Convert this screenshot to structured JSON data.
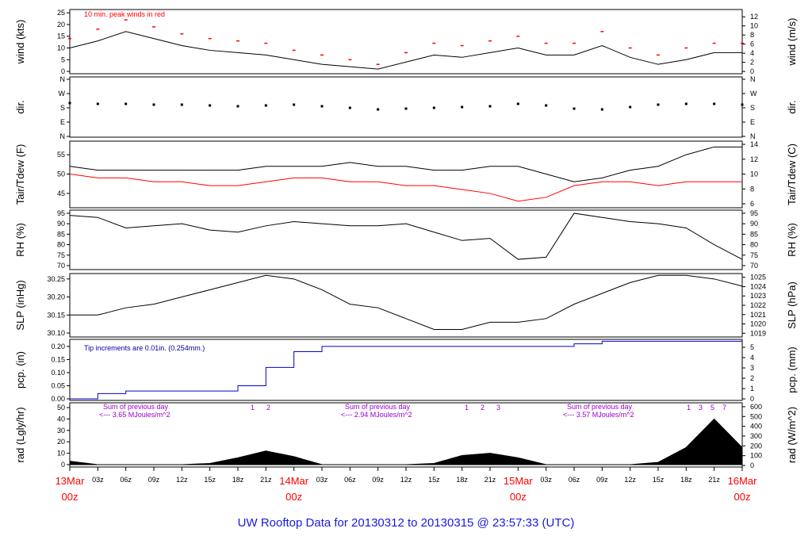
{
  "x_axis": {
    "x": [
      0,
      3,
      6,
      9,
      12,
      15,
      18,
      21,
      24,
      27,
      30,
      33,
      36,
      39,
      42,
      45,
      48,
      51,
      54,
      57,
      60,
      63,
      66,
      69,
      72
    ],
    "xlim": [
      0,
      72
    ],
    "xticks": [
      {
        "value": 0,
        "label": "13Mar",
        "sublabel": "00z"
      },
      {
        "value": 3,
        "label": "03z"
      },
      {
        "value": 6,
        "label": "06z"
      },
      {
        "value": 9,
        "label": "09z"
      },
      {
        "value": 12,
        "label": "12z"
      },
      {
        "value": 15,
        "label": "15z"
      },
      {
        "value": 18,
        "label": "18z"
      },
      {
        "value": 21,
        "label": "21z"
      },
      {
        "value": 24,
        "label": "14Mar",
        "sublabel": "00z"
      },
      {
        "value": 27,
        "label": "03z"
      },
      {
        "value": 30,
        "label": "06z"
      },
      {
        "value": 33,
        "label": "09z"
      },
      {
        "value": 36,
        "label": "12z"
      },
      {
        "value": 39,
        "label": "15z"
      },
      {
        "value": 42,
        "label": "18z"
      },
      {
        "value": 45,
        "label": "21z"
      },
      {
        "value": 48,
        "label": "15Mar",
        "sublabel": "00z"
      },
      {
        "value": 51,
        "label": "03z"
      },
      {
        "value": 54,
        "label": "06z"
      },
      {
        "value": 57,
        "label": "09z"
      },
      {
        "value": 60,
        "label": "12z"
      },
      {
        "value": 63,
        "label": "15z"
      },
      {
        "value": 66,
        "label": "18z"
      },
      {
        "value": 69,
        "label": "21z"
      },
      {
        "value": 72,
        "label": "16Mar",
        "sublabel": "00z"
      }
    ]
  },
  "title": "UW Rooftop Data for 20130312  to  20130315 @ 23:57:33  (UTC)",
  "chart_data": [
    {
      "type": "line",
      "ylabel": "wind (kts)",
      "y2label": "wind (m/s)",
      "ylim": [
        -1,
        26.4
      ],
      "yticks": [
        0,
        5,
        10,
        15,
        20,
        25
      ],
      "y2lim": [
        -0.51,
        13.6
      ],
      "y2ticks": [
        0,
        2,
        4,
        6,
        8,
        10,
        12
      ],
      "annotations": [
        "10 min. peak winds in red"
      ],
      "series": [
        {
          "name": "wind",
          "style": "line",
          "color": "#000000",
          "values": [
            10,
            13,
            17,
            14,
            11,
            9,
            8,
            7,
            5,
            3,
            2,
            1,
            4,
            7,
            6,
            8,
            10,
            7,
            7,
            11,
            6,
            3,
            5,
            8,
            8
          ]
        },
        {
          "name": "peak",
          "style": "dash",
          "color": "#ff0000",
          "values": [
            14,
            18,
            22,
            19,
            16,
            14,
            13,
            12,
            9,
            7,
            5,
            3,
            8,
            12,
            11,
            13,
            15,
            12,
            12,
            17,
            10,
            7,
            10,
            12,
            12
          ]
        }
      ]
    },
    {
      "type": "scatter",
      "ylabel": "dir.",
      "y2label": "dir.",
      "ylim": [
        -5,
        375
      ],
      "yticks": [
        {
          "value": 0,
          "label": "N"
        },
        {
          "value": 90,
          "label": "E"
        },
        {
          "value": 180,
          "label": "S"
        },
        {
          "value": 270,
          "label": "W"
        },
        {
          "value": 360,
          "label": "N"
        }
      ],
      "series": [
        {
          "name": "dir",
          "style": "dots",
          "color": "#000000",
          "values": [
            210,
            205,
            205,
            200,
            200,
            195,
            190,
            195,
            200,
            190,
            180,
            170,
            175,
            180,
            185,
            190,
            205,
            195,
            175,
            170,
            185,
            200,
            205,
            205,
            200
          ]
        }
      ]
    },
    {
      "type": "line",
      "ylabel": "Tair/Tdew (F)",
      "y2label": "Tair/Tdew (C)",
      "ylim": [
        41.3,
        58.5
      ],
      "yticks": [
        45,
        50,
        55
      ],
      "y2lim": [
        5.47,
        14.43
      ],
      "y2ticks": [
        6,
        8,
        10,
        12,
        14
      ],
      "series": [
        {
          "name": "Tair",
          "style": "line",
          "color": "#000000",
          "values": [
            52,
            51,
            51,
            51,
            51,
            51,
            51,
            52,
            52,
            52,
            53,
            52,
            52,
            51,
            51,
            52,
            52,
            50,
            48,
            49,
            51,
            52,
            55,
            57,
            57
          ]
        },
        {
          "name": "Tdew",
          "style": "line",
          "color": "#ff0000",
          "values": [
            50,
            49,
            49,
            48,
            48,
            47,
            47,
            48,
            49,
            49,
            48,
            48,
            47,
            47,
            46,
            45,
            43,
            44,
            47,
            48,
            48,
            47,
            48,
            48,
            48
          ]
        }
      ]
    },
    {
      "type": "line",
      "ylabel": "RH (%)",
      "y2label": "RH (%)",
      "ylim": [
        68.1,
        96.5
      ],
      "yticks": [
        70,
        75,
        80,
        85,
        90,
        95
      ],
      "series": [
        {
          "name": "RH",
          "style": "line",
          "color": "#000000",
          "values": [
            94,
            93,
            88,
            89,
            90,
            87,
            86,
            89,
            91,
            90,
            89,
            89,
            90,
            86,
            82,
            83,
            73,
            74,
            95,
            93,
            91,
            90,
            88,
            80,
            73
          ]
        }
      ]
    },
    {
      "type": "line",
      "ylabel": "SLP (inHg)",
      "y2label": "SLP (hPa)",
      "ylim": [
        30.089,
        30.265
      ],
      "yticks": [
        {
          "value": 30.1,
          "label": "30.10"
        },
        30.15,
        {
          "value": 30.2,
          "label": "30.20"
        },
        30.25
      ],
      "y2lim": [
        1018.6,
        1025.4
      ],
      "y2ticks": [
        1019,
        1020,
        1021,
        1022,
        1023,
        1024,
        1025
      ],
      "series": [
        {
          "name": "SLP",
          "style": "line",
          "color": "#000000",
          "values": [
            30.15,
            30.15,
            30.17,
            30.18,
            30.2,
            30.22,
            30.24,
            30.26,
            30.25,
            30.22,
            30.18,
            30.17,
            30.14,
            30.11,
            30.11,
            30.13,
            30.13,
            30.14,
            30.18,
            30.21,
            30.24,
            30.26,
            30.26,
            30.25,
            30.23
          ]
        }
      ]
    },
    {
      "type": "step",
      "ylabel": "pcp. (in)",
      "y2label": "pcp. (mm)",
      "ylim": [
        -0.006,
        0.227
      ],
      "yticks": [
        {
          "value": 0,
          "label": "0.00"
        },
        0.05,
        {
          "value": 0.1,
          "label": "0.10"
        },
        0.15,
        {
          "value": 0.2,
          "label": "0.20"
        }
      ],
      "y2lim": [
        -0.15,
        5.77
      ],
      "y2ticks": [
        0,
        1,
        2,
        3,
        4,
        5
      ],
      "annotations": [
        "Tip increments are 0.01in. (0.254mm.)"
      ],
      "series": [
        {
          "name": "pcp",
          "style": "step",
          "color": "#0000cc",
          "values": [
            0,
            0.02,
            0.03,
            0.03,
            0.03,
            0.03,
            0.05,
            0.12,
            0.18,
            0.2,
            0.2,
            0.2,
            0.2,
            0.2,
            0.2,
            0.2,
            0.2,
            0.2,
            0.21,
            0.22,
            0.22,
            0.22,
            0.22,
            0.22,
            0.22
          ]
        }
      ]
    },
    {
      "type": "area",
      "ylabel": "rad (Lgly/hr)",
      "y2label": "rad (W/m^2)",
      "ylim": [
        -2.1,
        54.2
      ],
      "yticks": [
        0,
        10,
        20,
        30,
        40,
        50
      ],
      "y2lim": [
        -16,
        640
      ],
      "y2ticks": [
        0,
        100,
        200,
        300,
        400,
        500,
        600
      ],
      "annotations": [
        "Sum of previous day",
        "<--- 3.65 MJoules/m^2",
        "Sum of previous day",
        "<--- 2.94 MJoules/m^2",
        "Sum of previous day",
        "<--- 3.57 MJoules/m^2"
      ],
      "markers": [
        "1      2",
        "1      2      3",
        "1    3    5    7"
      ],
      "series": [
        {
          "name": "rad",
          "style": "area",
          "color": "#000000",
          "values": [
            3,
            0,
            0,
            0,
            0,
            1,
            6,
            12,
            7,
            0,
            0,
            0,
            0,
            1,
            8,
            10,
            6,
            0,
            0,
            0,
            0,
            2,
            15,
            40,
            15
          ]
        }
      ]
    }
  ]
}
